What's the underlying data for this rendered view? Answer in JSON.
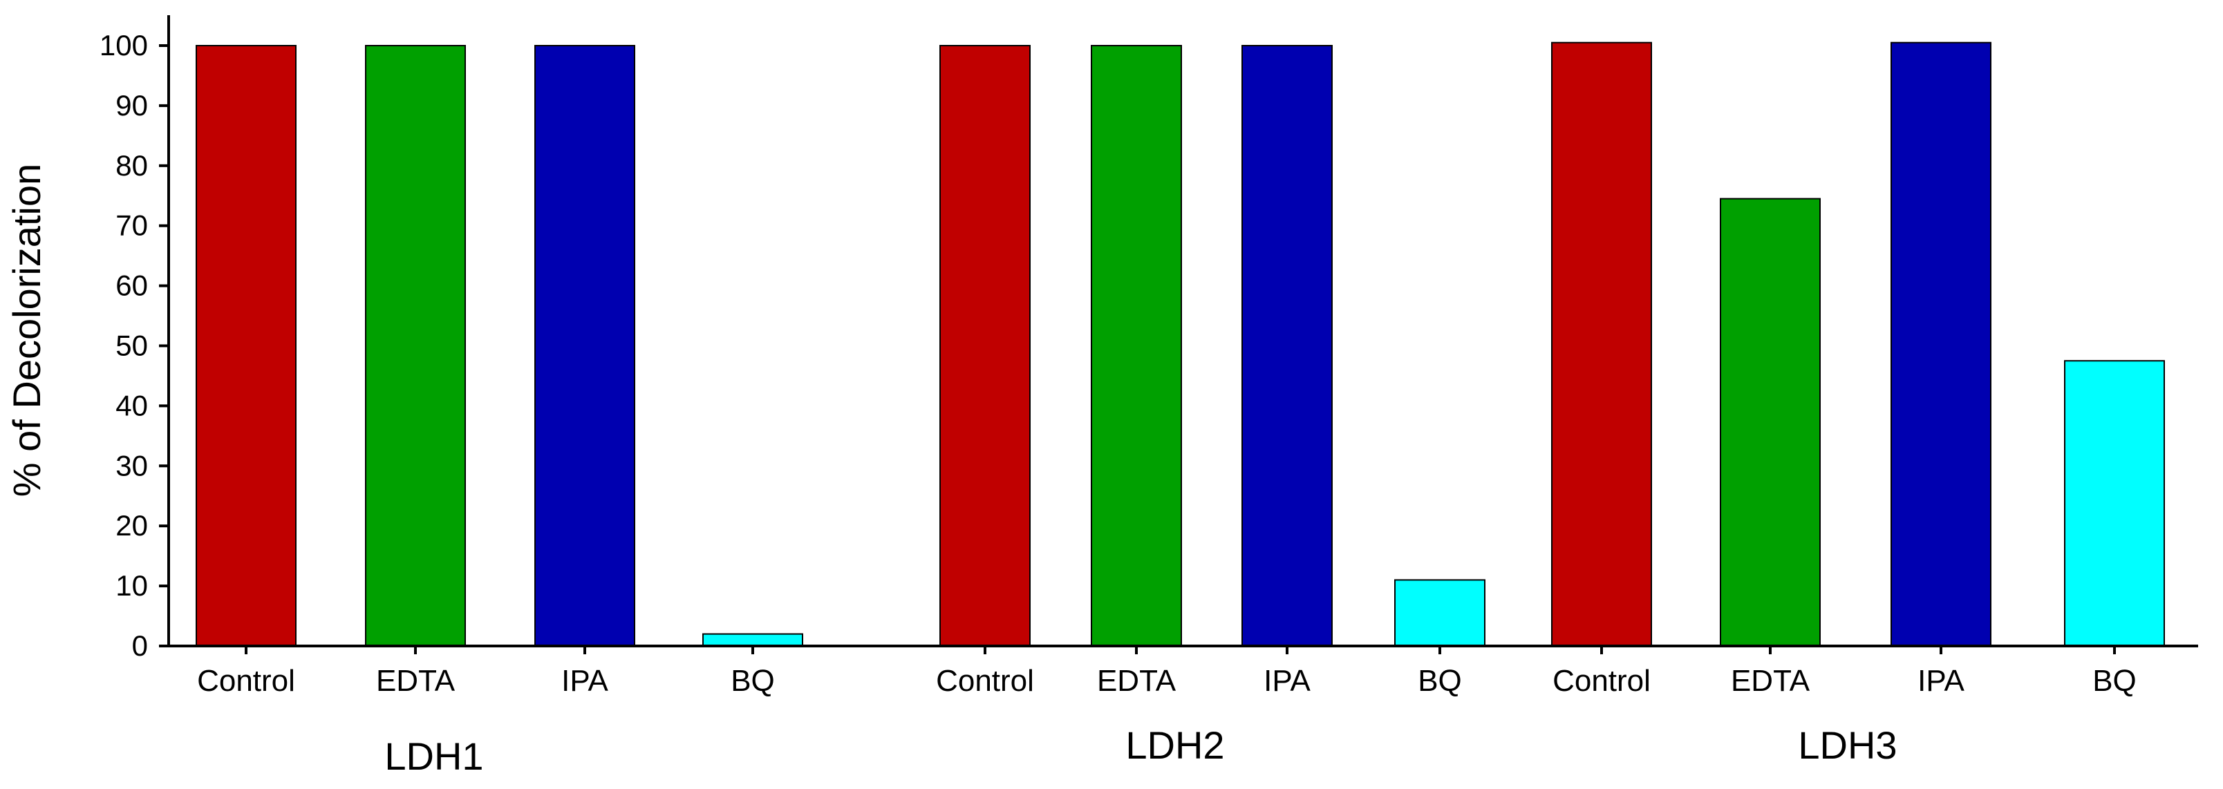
{
  "chart_data": {
    "type": "bar",
    "ylabel": "% of Decolorization",
    "xlabel": "",
    "title": "",
    "ylim": [
      0,
      103
    ],
    "yticks": [
      0,
      10,
      20,
      30,
      40,
      50,
      60,
      70,
      80,
      90,
      100
    ],
    "grid": false,
    "groups": [
      {
        "name": "LDH1",
        "bars": [
          {
            "category": "Control",
            "value": 100,
            "color": "#c00000"
          },
          {
            "category": "EDTA",
            "value": 100,
            "color": "#00a000"
          },
          {
            "category": "IPA",
            "value": 100,
            "color": "#0000b0"
          },
          {
            "category": "BQ",
            "value": 2,
            "color": "#00ffff"
          }
        ]
      },
      {
        "name": "LDH2",
        "bars": [
          {
            "category": "Control",
            "value": 100,
            "color": "#c00000"
          },
          {
            "category": "EDTA",
            "value": 100,
            "color": "#00a000"
          },
          {
            "category": "IPA",
            "value": 100,
            "color": "#0000b0"
          },
          {
            "category": "BQ",
            "value": 11,
            "color": "#00ffff"
          }
        ]
      },
      {
        "name": "LDH3",
        "bars": [
          {
            "category": "Control",
            "value": 100.5,
            "color": "#c00000"
          },
          {
            "category": "EDTA",
            "value": 74.5,
            "color": "#00a000"
          },
          {
            "category": "IPA",
            "value": 100.5,
            "color": "#0000b0"
          },
          {
            "category": "BQ",
            "value": 47.5,
            "color": "#00ffff"
          }
        ]
      }
    ]
  }
}
